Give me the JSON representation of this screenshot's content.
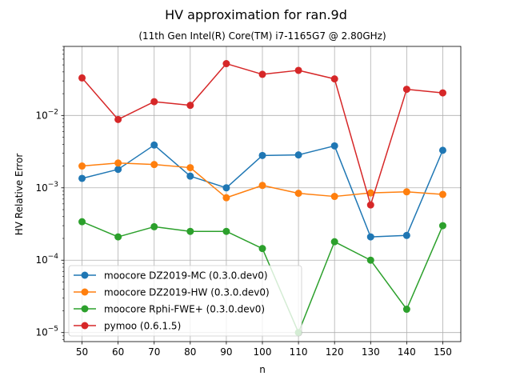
{
  "chart_data": {
    "type": "line",
    "title": "HV approximation for ran.9d",
    "subtitle": "(11th Gen Intel(R) Core(TM) i7-1165G7 @ 2.80GHz)",
    "xlabel": "n",
    "ylabel": "HV Relative Error",
    "yscale": "log",
    "grid": true,
    "legend_position": "lower-left",
    "x": [
      50,
      60,
      70,
      80,
      90,
      100,
      110,
      120,
      130,
      140,
      150
    ],
    "x_ticks": [
      "50",
      "60",
      "70",
      "80",
      "90",
      "100",
      "110",
      "120",
      "130",
      "140",
      "150"
    ],
    "y_ticks": [
      {
        "value": 0.01,
        "base": "10",
        "exp": "−2"
      },
      {
        "value": 0.001,
        "base": "10",
        "exp": "−3"
      },
      {
        "value": 0.0001,
        "base": "10",
        "exp": "−4"
      },
      {
        "value": 1e-05,
        "base": "10",
        "exp": "−5"
      }
    ],
    "xlim": [
      45,
      155
    ],
    "ylim": [
      7.5e-06,
      0.09
    ],
    "series": [
      {
        "name": "moocore DZ2019-MC (0.3.0.dev0)",
        "color": "#1f77b4",
        "values": [
          0.00135,
          0.0018,
          0.0039,
          0.00145,
          0.001,
          0.0028,
          0.00285,
          0.0038,
          0.00021,
          0.00022,
          0.0033
        ]
      },
      {
        "name": "moocore DZ2019-HW (0.3.0.dev0)",
        "color": "#ff7f0e",
        "values": [
          0.002,
          0.0022,
          0.0021,
          0.0019,
          0.00073,
          0.00108,
          0.00084,
          0.00076,
          0.00085,
          0.00088,
          0.00081
        ]
      },
      {
        "name": "moocore Rphi-FWE+ (0.3.0.dev0)",
        "color": "#2ca02c",
        "values": [
          0.00034,
          0.00021,
          0.00029,
          0.00025,
          0.00025,
          0.000145,
          1e-05,
          0.00018,
          0.0001,
          2.1e-05,
          0.0003
        ]
      },
      {
        "name": "pymoo (0.6.1.5)",
        "color": "#d62728",
        "values": [
          0.033,
          0.0088,
          0.0155,
          0.0138,
          0.052,
          0.037,
          0.042,
          0.032,
          0.00058,
          0.023,
          0.0205
        ]
      }
    ]
  }
}
